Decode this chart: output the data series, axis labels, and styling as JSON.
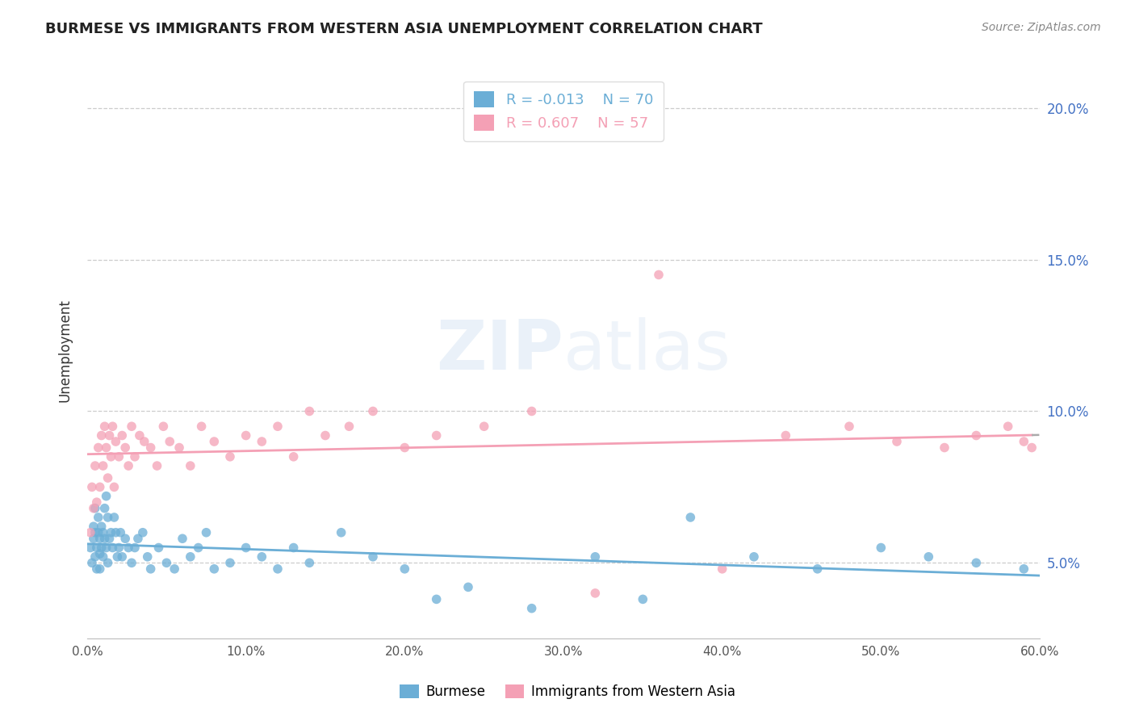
{
  "title": "BURMESE VS IMMIGRANTS FROM WESTERN ASIA UNEMPLOYMENT CORRELATION CHART",
  "source": "Source: ZipAtlas.com",
  "ylabel": "Unemployment",
  "y_ticks": [
    0.05,
    0.1,
    0.15,
    0.2
  ],
  "y_tick_labels": [
    "5.0%",
    "10.0%",
    "15.0%",
    "20.0%"
  ],
  "xmin": 0.0,
  "xmax": 0.6,
  "ymin": 0.025,
  "ymax": 0.215,
  "r_burmese": -0.013,
  "n_burmese": 70,
  "r_western_asia": 0.607,
  "n_western_asia": 57,
  "color_burmese": "#6baed6",
  "color_western_asia": "#f4a0b5",
  "legend_label_burmese": "Burmese",
  "legend_label_western_asia": "Immigrants from Western Asia",
  "watermark": "ZIPAtlas",
  "burmese_x": [
    0.002,
    0.003,
    0.004,
    0.004,
    0.005,
    0.005,
    0.005,
    0.006,
    0.006,
    0.007,
    0.007,
    0.008,
    0.008,
    0.008,
    0.009,
    0.009,
    0.01,
    0.01,
    0.011,
    0.011,
    0.012,
    0.012,
    0.013,
    0.013,
    0.014,
    0.015,
    0.016,
    0.017,
    0.018,
    0.019,
    0.02,
    0.021,
    0.022,
    0.024,
    0.026,
    0.028,
    0.03,
    0.032,
    0.035,
    0.038,
    0.04,
    0.045,
    0.05,
    0.055,
    0.06,
    0.065,
    0.07,
    0.075,
    0.08,
    0.09,
    0.1,
    0.11,
    0.12,
    0.13,
    0.14,
    0.16,
    0.18,
    0.2,
    0.22,
    0.24,
    0.28,
    0.32,
    0.35,
    0.38,
    0.42,
    0.46,
    0.5,
    0.53,
    0.56,
    0.59
  ],
  "burmese_y": [
    0.055,
    0.05,
    0.062,
    0.058,
    0.052,
    0.06,
    0.068,
    0.055,
    0.048,
    0.06,
    0.065,
    0.058,
    0.053,
    0.048,
    0.062,
    0.055,
    0.06,
    0.052,
    0.068,
    0.058,
    0.072,
    0.055,
    0.065,
    0.05,
    0.058,
    0.06,
    0.055,
    0.065,
    0.06,
    0.052,
    0.055,
    0.06,
    0.052,
    0.058,
    0.055,
    0.05,
    0.055,
    0.058,
    0.06,
    0.052,
    0.048,
    0.055,
    0.05,
    0.048,
    0.058,
    0.052,
    0.055,
    0.06,
    0.048,
    0.05,
    0.055,
    0.052,
    0.048,
    0.055,
    0.05,
    0.06,
    0.052,
    0.048,
    0.038,
    0.042,
    0.035,
    0.052,
    0.038,
    0.065,
    0.052,
    0.048,
    0.055,
    0.052,
    0.05,
    0.048
  ],
  "western_asia_x": [
    0.002,
    0.003,
    0.004,
    0.005,
    0.006,
    0.007,
    0.008,
    0.009,
    0.01,
    0.011,
    0.012,
    0.013,
    0.014,
    0.015,
    0.016,
    0.017,
    0.018,
    0.02,
    0.022,
    0.024,
    0.026,
    0.028,
    0.03,
    0.033,
    0.036,
    0.04,
    0.044,
    0.048,
    0.052,
    0.058,
    0.065,
    0.072,
    0.08,
    0.09,
    0.1,
    0.11,
    0.12,
    0.13,
    0.14,
    0.15,
    0.165,
    0.18,
    0.2,
    0.22,
    0.25,
    0.28,
    0.32,
    0.36,
    0.4,
    0.44,
    0.48,
    0.51,
    0.54,
    0.56,
    0.58,
    0.59,
    0.595
  ],
  "western_asia_y": [
    0.06,
    0.075,
    0.068,
    0.082,
    0.07,
    0.088,
    0.075,
    0.092,
    0.082,
    0.095,
    0.088,
    0.078,
    0.092,
    0.085,
    0.095,
    0.075,
    0.09,
    0.085,
    0.092,
    0.088,
    0.082,
    0.095,
    0.085,
    0.092,
    0.09,
    0.088,
    0.082,
    0.095,
    0.09,
    0.088,
    0.082,
    0.095,
    0.09,
    0.085,
    0.092,
    0.09,
    0.095,
    0.085,
    0.1,
    0.092,
    0.095,
    0.1,
    0.088,
    0.092,
    0.095,
    0.1,
    0.04,
    0.145,
    0.048,
    0.092,
    0.095,
    0.09,
    0.088,
    0.092,
    0.095,
    0.09,
    0.088
  ]
}
